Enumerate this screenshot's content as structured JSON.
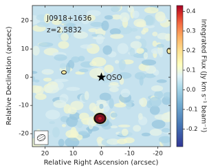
{
  "chart_data": {
    "type": "image",
    "xlabel": "Relative Right Ascension (arcsec)",
    "ylabel": "Relative Declination (arcsec)",
    "colorbar_label": "Integrated Flux (Jy km s⁻¹ beam⁻¹)",
    "annotations": [
      "J0918+1636",
      "z=2.5832"
    ],
    "marker": {
      "label": "QSO",
      "x": 0,
      "y": 0
    },
    "sources": {
      "x": [
        0.5,
        13.3,
        -24
      ],
      "y": [
        -14.6,
        1.7,
        9.3
      ]
    },
    "xlim": [
      24.5,
      -24.5
    ],
    "ylim": [
      -24.6,
      25.4
    ],
    "xticks": [
      20,
      10,
      0,
      -10,
      -20
    ],
    "yticks": [
      20,
      10,
      0,
      -10,
      -20
    ],
    "clim": [
      -0.29,
      0.43
    ],
    "cticks": [
      0.4,
      0.3,
      0.2,
      0.1,
      {
        "value": 0,
        "label": "0.0"
      },
      -0.1,
      -0.2
    ]
  }
}
